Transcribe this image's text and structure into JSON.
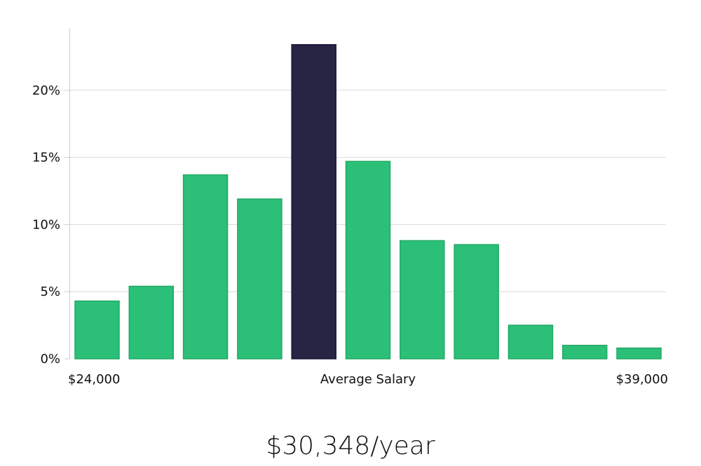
{
  "chart_data": {
    "type": "bar",
    "categories": [
      "1",
      "2",
      "3",
      "4",
      "5",
      "6",
      "7",
      "8",
      "9",
      "10",
      "11"
    ],
    "values": [
      4.3,
      5.4,
      13.7,
      11.9,
      23.4,
      14.7,
      8.8,
      8.5,
      2.5,
      1.0,
      0.8
    ],
    "highlight_index": 4,
    "ylim": [
      0,
      25
    ],
    "yticks": [
      0,
      5,
      10,
      15,
      20
    ],
    "ytick_labels": [
      "0%",
      "5%",
      "10%",
      "15%",
      "20%"
    ],
    "grid": true,
    "x_labels": {
      "left": "$24,000",
      "center": "Average Salary",
      "right": "$39,000"
    },
    "colors": {
      "bar": "#2bbf77",
      "bar_stroke": "#22a866",
      "highlight": "#272444",
      "highlight_stroke": "#1a1838",
      "grid": "#d9d9d9",
      "axis": "#cccccc"
    }
  },
  "salary_text": "$30,348/year"
}
